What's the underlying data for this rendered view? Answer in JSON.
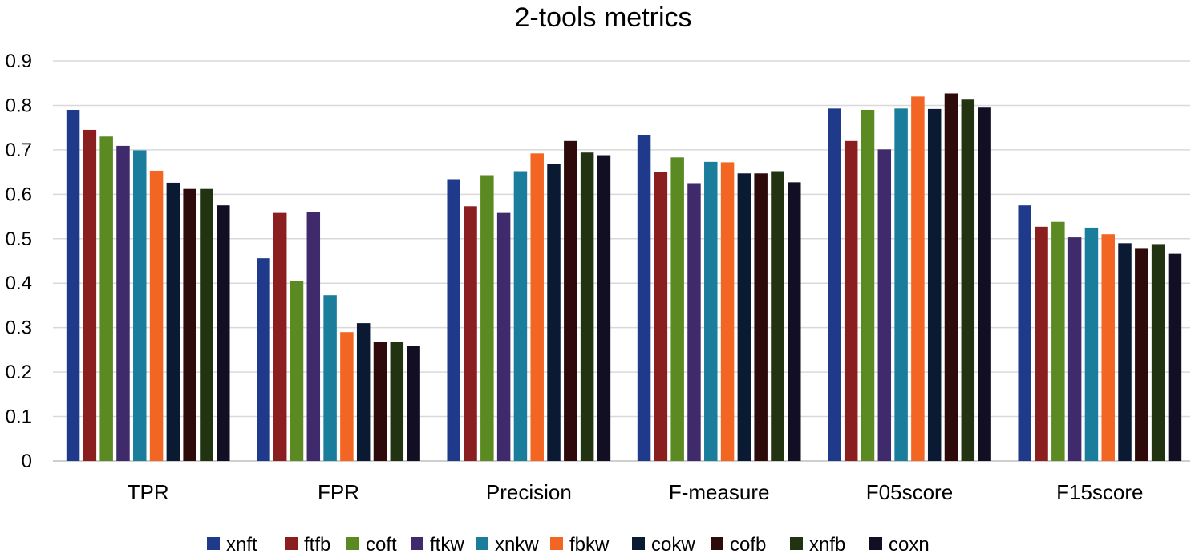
{
  "chart_data": {
    "type": "bar",
    "title": "2-tools metrics",
    "xlabel": "",
    "ylabel": "",
    "ylim": [
      0,
      0.9
    ],
    "yticks": [
      "0",
      "0.1",
      "0.2",
      "0.3",
      "0.4",
      "0.5",
      "0.6",
      "0.7",
      "0.8",
      "0.9"
    ],
    "grid": true,
    "legend_position": "bottom",
    "categories": [
      "TPR",
      "FPR",
      "Precision",
      "F-measure",
      "F05score",
      "F15score"
    ],
    "series": [
      {
        "name": "xnft",
        "color": "#1f3a8a",
        "values": [
          0.79,
          0.456,
          0.634,
          0.733,
          0.793,
          0.575
        ]
      },
      {
        "name": "ftfb",
        "color": "#8b1f1f",
        "values": [
          0.745,
          0.558,
          0.573,
          0.65,
          0.72,
          0.527
        ]
      },
      {
        "name": "coft",
        "color": "#5b8a22",
        "values": [
          0.73,
          0.404,
          0.643,
          0.683,
          0.79,
          0.538
        ]
      },
      {
        "name": "ftkw",
        "color": "#3f2a6b",
        "values": [
          0.709,
          0.56,
          0.558,
          0.625,
          0.701,
          0.503
        ]
      },
      {
        "name": "xnkw",
        "color": "#1a7d9c",
        "values": [
          0.699,
          0.373,
          0.652,
          0.673,
          0.793,
          0.525
        ]
      },
      {
        "name": "fbkw",
        "color": "#f26522",
        "values": [
          0.653,
          0.29,
          0.692,
          0.672,
          0.82,
          0.51
        ]
      },
      {
        "name": "cokw",
        "color": "#0a1a33",
        "values": [
          0.626,
          0.31,
          0.668,
          0.647,
          0.792,
          0.49
        ]
      },
      {
        "name": "cofb",
        "color": "#2e0a0a",
        "values": [
          0.612,
          0.268,
          0.72,
          0.647,
          0.827,
          0.479
        ]
      },
      {
        "name": "xnfb",
        "color": "#223312",
        "values": [
          0.612,
          0.268,
          0.694,
          0.652,
          0.813,
          0.488
        ]
      },
      {
        "name": "coxn",
        "color": "#120f24",
        "values": [
          0.575,
          0.259,
          0.688,
          0.627,
          0.795,
          0.466
        ]
      }
    ]
  }
}
